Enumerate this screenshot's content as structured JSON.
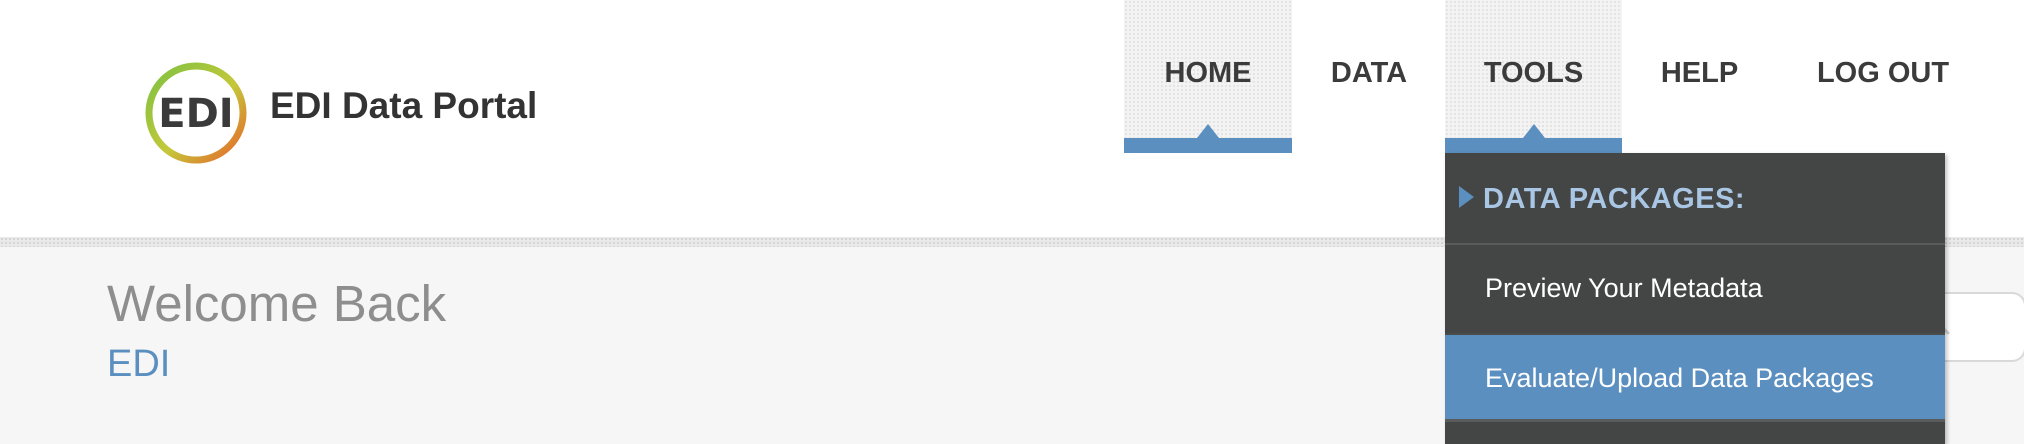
{
  "header": {
    "brand": "EDI Data Portal",
    "logo_text": "EDI"
  },
  "nav": {
    "items": [
      {
        "label": "HOME",
        "active": true
      },
      {
        "label": "DATA",
        "active": false
      },
      {
        "label": "TOOLS",
        "active": true,
        "open": true
      },
      {
        "label": "HELP",
        "active": false
      },
      {
        "label": "LOG OUT",
        "active": false
      }
    ]
  },
  "tools_menu": {
    "section_title": "DATA PACKAGES:",
    "items": [
      {
        "label": "Preview Your Metadata",
        "highlighted": false
      },
      {
        "label": "Evaluate/Upload Data Packages",
        "highlighted": true
      }
    ]
  },
  "main": {
    "welcome": "Welcome Back",
    "username": "EDI"
  },
  "colors": {
    "accent": "#5b8fc0",
    "menu_bg": "#444545",
    "menu_title": "#a9c6e4",
    "text_dark": "#333333",
    "text_muted": "#8e8e8e",
    "content_bg": "#f6f6f6"
  },
  "icons": {
    "logo": "edi-logo-icon",
    "search": "search-icon",
    "menu_section": "triangle-right-icon"
  }
}
